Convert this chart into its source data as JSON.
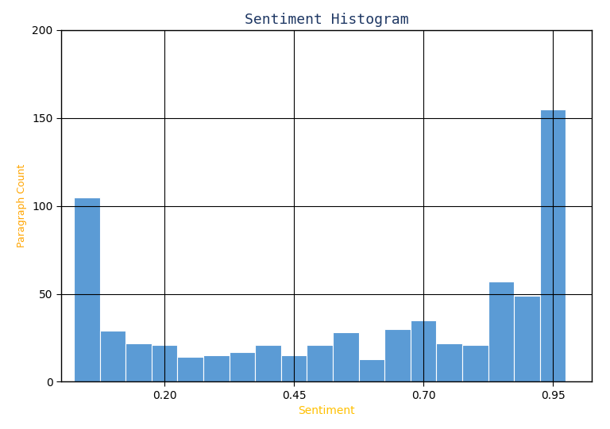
{
  "title": "Sentiment Histogram",
  "xlabel": "Sentiment",
  "ylabel": "Paragraph Count",
  "bar_color": "#5b9bd5",
  "ylim": [
    0,
    200
  ],
  "yticks": [
    0,
    50,
    100,
    150,
    200
  ],
  "xticks": [
    0.2,
    0.45,
    0.7,
    0.95
  ],
  "title_color": "#1f3864",
  "xlabel_color": "#ffc000",
  "ylabel_color": "#ffa500",
  "grid_color": "#000000",
  "bar_left_edges": [
    0.025,
    0.075,
    0.125,
    0.175,
    0.225,
    0.275,
    0.325,
    0.375,
    0.425,
    0.475,
    0.525,
    0.575,
    0.625,
    0.675,
    0.725,
    0.775,
    0.825,
    0.875,
    0.925,
    0.975
  ],
  "bar_heights": [
    105,
    29,
    22,
    21,
    14,
    15,
    17,
    21,
    15,
    21,
    28,
    13,
    30,
    35,
    22,
    21,
    57,
    49,
    155,
    0
  ],
  "bar_width": 0.05,
  "xlim": [
    0.0,
    1.025
  ],
  "figsize": [
    7.68,
    5.41
  ],
  "dpi": 100
}
